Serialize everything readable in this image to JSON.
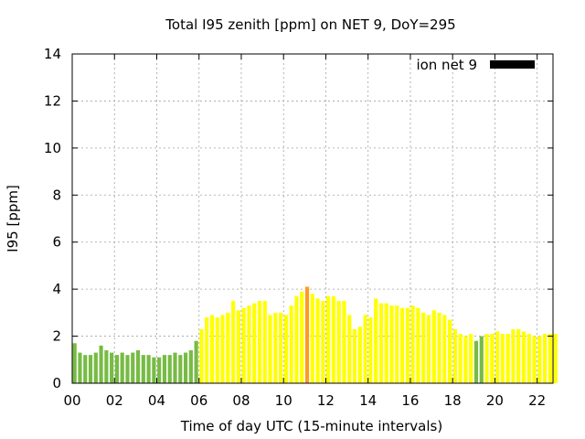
{
  "chart_data": {
    "type": "bar",
    "title": "Total I95 zenith [ppm] on NET 9, DoY=295",
    "xlabel": "Time of day UTC (15-minute intervals)",
    "ylabel": "I95 [ppm]",
    "xlim": [
      0,
      22.75
    ],
    "ylim": [
      0,
      14
    ],
    "grid": true,
    "xticks": [
      "00",
      "02",
      "04",
      "06",
      "08",
      "10",
      "12",
      "14",
      "16",
      "18",
      "20",
      "22"
    ],
    "yticks": [
      "0",
      "2",
      "4",
      "6",
      "8",
      "10",
      "12",
      "14"
    ],
    "legend": {
      "label": "ion net 9",
      "color": "#000000",
      "placement": "top-right"
    },
    "bar_interval_hours": 0.25,
    "start_hour": 0,
    "colors": {
      "low": "#77bb44",
      "mid": "#ffff00",
      "high": "#ff9922"
    },
    "values": [
      1.7,
      1.3,
      1.2,
      1.2,
      1.3,
      1.6,
      1.4,
      1.3,
      1.2,
      1.3,
      1.2,
      1.3,
      1.4,
      1.2,
      1.2,
      1.1,
      1.1,
      1.2,
      1.2,
      1.3,
      1.2,
      1.3,
      1.4,
      1.8,
      2.3,
      2.8,
      2.9,
      2.8,
      2.9,
      3.0,
      3.5,
      3.1,
      3.2,
      3.3,
      3.4,
      3.5,
      3.5,
      2.9,
      3.0,
      3.0,
      2.9,
      3.3,
      3.7,
      3.9,
      4.1,
      3.8,
      3.6,
      3.5,
      3.7,
      3.7,
      3.5,
      3.5,
      2.9,
      2.3,
      2.4,
      2.9,
      2.8,
      3.6,
      3.4,
      3.4,
      3.3,
      3.3,
      3.2,
      3.2,
      3.3,
      3.2,
      3.0,
      2.9,
      3.1,
      3.0,
      2.9,
      2.7,
      2.3,
      2.1,
      2.0,
      2.1,
      1.8,
      2.0,
      2.1,
      2.1,
      2.2,
      2.1,
      2.1,
      2.3,
      2.3,
      2.2,
      2.1,
      2.0,
      2.0,
      2.1,
      2.1,
      2.1
    ],
    "levels": [
      "low",
      "low",
      "low",
      "low",
      "low",
      "low",
      "low",
      "low",
      "low",
      "low",
      "low",
      "low",
      "low",
      "low",
      "low",
      "low",
      "low",
      "low",
      "low",
      "low",
      "low",
      "low",
      "low",
      "low",
      "mid",
      "mid",
      "mid",
      "mid",
      "mid",
      "mid",
      "mid",
      "mid",
      "mid",
      "mid",
      "mid",
      "mid",
      "mid",
      "mid",
      "mid",
      "mid",
      "mid",
      "mid",
      "mid",
      "mid",
      "high",
      "mid",
      "mid",
      "mid",
      "mid",
      "mid",
      "mid",
      "mid",
      "mid",
      "mid",
      "mid",
      "mid",
      "mid",
      "mid",
      "mid",
      "mid",
      "mid",
      "mid",
      "mid",
      "mid",
      "mid",
      "mid",
      "mid",
      "mid",
      "mid",
      "mid",
      "mid",
      "mid",
      "mid",
      "mid",
      "mid",
      "mid",
      "low",
      "low",
      "mid",
      "mid",
      "mid",
      "mid",
      "mid",
      "mid",
      "mid",
      "mid",
      "mid",
      "mid",
      "mid",
      "mid",
      "mid",
      "mid"
    ]
  }
}
